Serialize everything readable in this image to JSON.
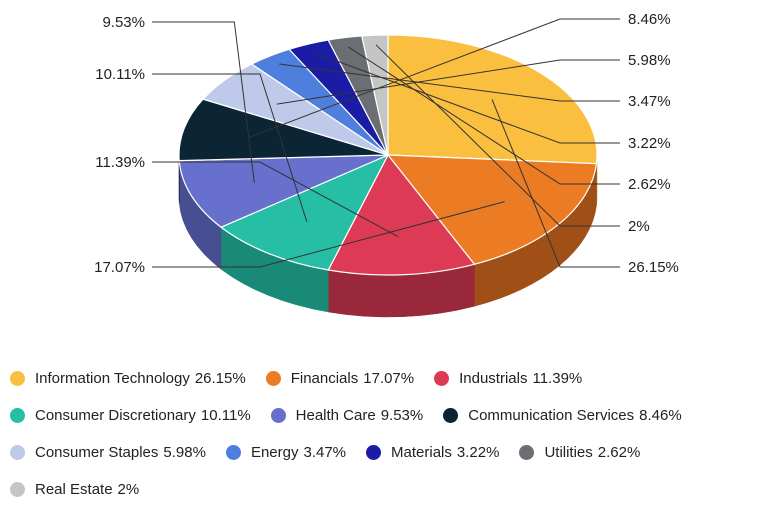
{
  "chart_data": {
    "type": "pie",
    "title": "",
    "legend_position": "bottom",
    "slices": [
      {
        "name": "Information Technology",
        "value": 26.15,
        "label": "26.15%",
        "color": "#FBBF3F",
        "side_color": "#B08727"
      },
      {
        "name": "Financials",
        "value": 17.07,
        "label": "17.07%",
        "color": "#EC7C24",
        "side_color": "#A04F16"
      },
      {
        "name": "Industrials",
        "value": 11.39,
        "label": "11.39%",
        "color": "#DD3B55",
        "side_color": "#98283A"
      },
      {
        "name": "Consumer Discretionary",
        "value": 10.11,
        "label": "10.11%",
        "color": "#26BFA6",
        "side_color": "#1A8A78"
      },
      {
        "name": "Health Care",
        "value": 9.53,
        "label": "9.53%",
        "color": "#6770CD",
        "side_color": "#474F92"
      },
      {
        "name": "Communication Services",
        "value": 8.46,
        "label": "8.46%",
        "color": "#0B2534",
        "side_color": "#06161F"
      },
      {
        "name": "Consumer Staples",
        "value": 5.98,
        "label": "5.98%",
        "color": "#BFCAEA",
        "side_color": "#8B93AC"
      },
      {
        "name": "Energy",
        "value": 3.47,
        "label": "3.47%",
        "color": "#4E7FDD",
        "side_color": "#345AA0"
      },
      {
        "name": "Materials",
        "value": 3.22,
        "label": "3.22%",
        "color": "#1A1CA6",
        "side_color": "#101275"
      },
      {
        "name": "Utilities",
        "value": 2.62,
        "label": "2.62%",
        "color": "#6B6E72",
        "side_color": "#4A4C4F"
      },
      {
        "name": "Real Estate",
        "value": 2,
        "label": "2%",
        "color": "#C4C6C4",
        "side_color": "#8E908E"
      }
    ]
  }
}
